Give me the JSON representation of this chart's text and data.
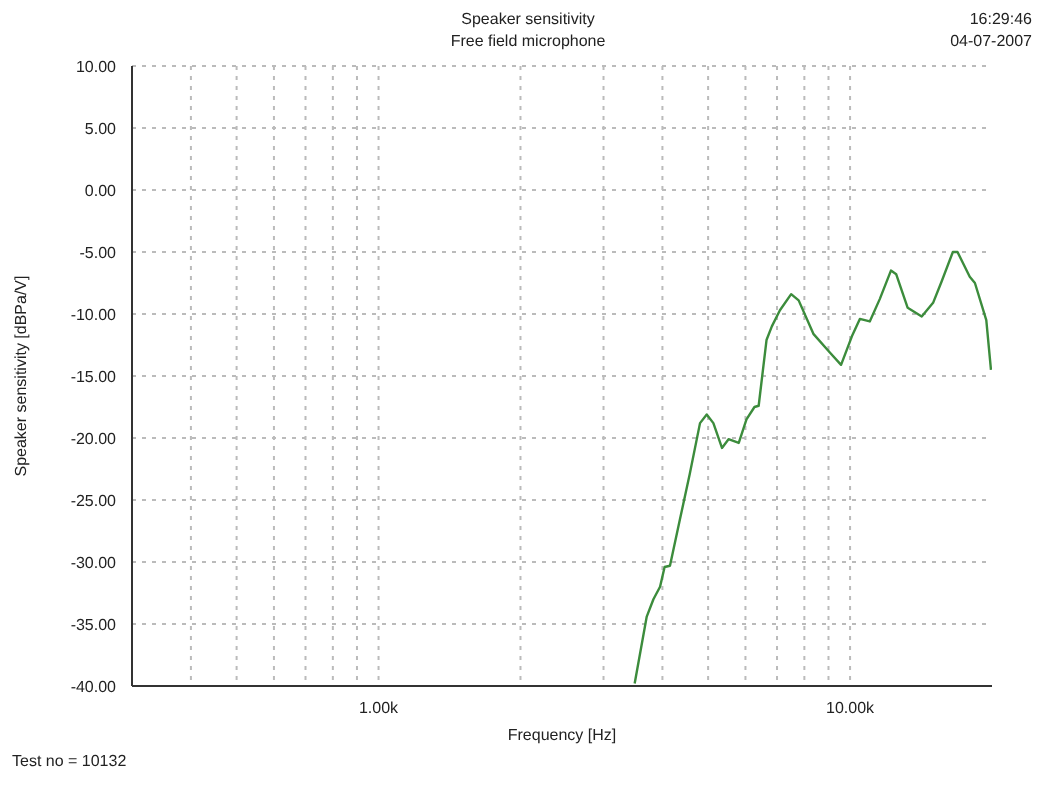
{
  "chart_data": {
    "type": "line",
    "title": "Speaker sensitivity",
    "subtitle": "Free field microphone",
    "xlabel": "Frequency [Hz]",
    "ylabel": "Speaker sensitivity [dBPa/V]",
    "annotations": [
      "16:29:46",
      "04-07-2007",
      "Test no = 10132"
    ],
    "log": "x",
    "grid": true,
    "xlim": [
      300,
      20000
    ],
    "xticks": [
      {
        "value": 400,
        "label": null
      },
      {
        "value": 500,
        "label": null
      },
      {
        "value": 600,
        "label": null
      },
      {
        "value": 700,
        "label": null
      },
      {
        "value": 800,
        "label": null
      },
      {
        "value": 900,
        "label": null
      },
      {
        "value": 1000,
        "label": "1.00k"
      },
      {
        "value": 2000,
        "label": null
      },
      {
        "value": 3000,
        "label": null
      },
      {
        "value": 4000,
        "label": null
      },
      {
        "value": 5000,
        "label": null
      },
      {
        "value": 6000,
        "label": null
      },
      {
        "value": 7000,
        "label": null
      },
      {
        "value": 8000,
        "label": null
      },
      {
        "value": 9000,
        "label": null
      },
      {
        "value": 10000,
        "label": "10.00k"
      }
    ],
    "ylim": [
      -40,
      10
    ],
    "yticks": [
      {
        "value": 10,
        "label": "10.00"
      },
      {
        "value": 5,
        "label": "5.00"
      },
      {
        "value": 0,
        "label": "0.00"
      },
      {
        "value": -5,
        "label": "-5.00"
      },
      {
        "value": -10,
        "label": "-10.00"
      },
      {
        "value": -15,
        "label": "-15.00"
      },
      {
        "value": -20,
        "label": "-20.00"
      },
      {
        "value": -25,
        "label": "-25.00"
      },
      {
        "value": -30,
        "label": "-30.00"
      },
      {
        "value": -35,
        "label": "-35.00"
      },
      {
        "value": -40,
        "label": "-40.00"
      }
    ],
    "series": [
      {
        "color": "#3c8c3c",
        "x": [
          3493,
          3705,
          3828,
          3954,
          4043,
          4150,
          4355,
          4571,
          4806,
          4966,
          5130,
          5350,
          5524,
          5807,
          6030,
          6270,
          6400,
          6650,
          6825,
          7100,
          7500,
          7780,
          8360,
          9060,
          9570,
          10090,
          10490,
          11010,
          11560,
          12210,
          12530,
          13250,
          14190,
          15000,
          15630,
          16520,
          16900,
          17940,
          18400,
          19450,
          19900
        ],
        "values": [
          -39.8,
          -34.4,
          -33.0,
          -32.0,
          -30.4,
          -30.3,
          -26.6,
          -22.9,
          -18.8,
          -18.1,
          -18.8,
          -20.8,
          -20.1,
          -20.4,
          -18.5,
          -17.5,
          -17.4,
          -12.1,
          -11.0,
          -9.7,
          -8.4,
          -8.9,
          -11.6,
          -13.1,
          -14.1,
          -11.8,
          -10.4,
          -10.6,
          -8.8,
          -6.5,
          -6.8,
          -9.5,
          -10.2,
          -9.1,
          -7.4,
          -5.0,
          -5.0,
          -7.0,
          -7.5,
          -10.5,
          -14.5
        ]
      }
    ]
  }
}
